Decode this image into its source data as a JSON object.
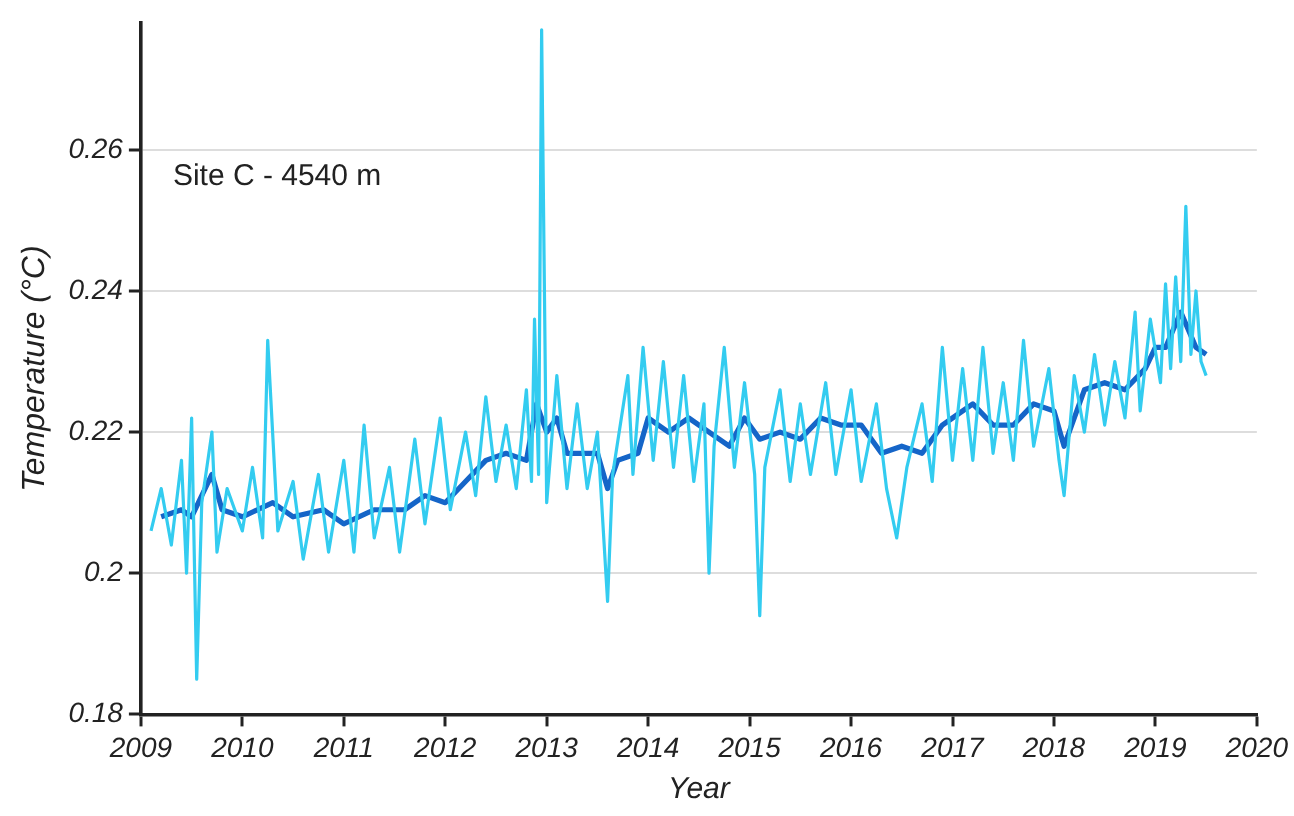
{
  "chart_data": {
    "type": "line",
    "xlabel": "Year",
    "ylabel": "Temperature (°C)",
    "annotations": [
      "Site C - 4540 m"
    ],
    "xlim": [
      2009,
      2020
    ],
    "xticks": [
      2009,
      2010,
      2011,
      2012,
      2013,
      2014,
      2015,
      2016,
      2017,
      2018,
      2019,
      2020
    ],
    "ylim": [
      0.18,
      0.278
    ],
    "yticks": [
      0.18,
      0.2,
      0.22,
      0.24,
      0.26
    ],
    "grid": "y",
    "marker": "none",
    "line_style": "solid",
    "series": [
      {
        "color": "#33ccf0",
        "x": [
          2009.1,
          2009.2,
          2009.3,
          2009.4,
          2009.45,
          2009.5,
          2009.55,
          2009.6,
          2009.7,
          2009.75,
          2009.85,
          2010.0,
          2010.1,
          2010.2,
          2010.25,
          2010.35,
          2010.5,
          2010.6,
          2010.75,
          2010.85,
          2011.0,
          2011.1,
          2011.2,
          2011.3,
          2011.45,
          2011.55,
          2011.7,
          2011.8,
          2011.95,
          2012.05,
          2012.2,
          2012.3,
          2012.4,
          2012.5,
          2012.6,
          2012.7,
          2012.8,
          2012.85,
          2012.88,
          2012.92,
          2012.95,
          2013.0,
          2013.1,
          2013.2,
          2013.3,
          2013.4,
          2013.5,
          2013.55,
          2013.6,
          2013.65,
          2013.8,
          2013.85,
          2013.95,
          2014.05,
          2014.15,
          2014.25,
          2014.35,
          2014.45,
          2014.55,
          2014.6,
          2014.65,
          2014.75,
          2014.85,
          2014.95,
          2015.05,
          2015.1,
          2015.15,
          2015.3,
          2015.4,
          2015.5,
          2015.6,
          2015.75,
          2015.85,
          2016.0,
          2016.1,
          2016.25,
          2016.35,
          2016.45,
          2016.55,
          2016.7,
          2016.8,
          2016.9,
          2017.0,
          2017.1,
          2017.2,
          2017.3,
          2017.4,
          2017.5,
          2017.6,
          2017.7,
          2017.8,
          2017.95,
          2018.05,
          2018.1,
          2018.2,
          2018.3,
          2018.4,
          2018.5,
          2018.6,
          2018.7,
          2018.8,
          2018.85,
          2018.95,
          2019.05,
          2019.1,
          2019.15,
          2019.2,
          2019.25,
          2019.3,
          2019.35,
          2019.4,
          2019.45,
          2019.5
        ],
        "values": [
          0.206,
          0.212,
          0.204,
          0.216,
          0.2,
          0.222,
          0.185,
          0.21,
          0.22,
          0.203,
          0.212,
          0.206,
          0.215,
          0.205,
          0.233,
          0.206,
          0.213,
          0.202,
          0.214,
          0.203,
          0.216,
          0.203,
          0.221,
          0.205,
          0.215,
          0.203,
          0.219,
          0.207,
          0.222,
          0.209,
          0.22,
          0.211,
          0.225,
          0.213,
          0.221,
          0.212,
          0.226,
          0.213,
          0.236,
          0.214,
          0.277,
          0.21,
          0.228,
          0.212,
          0.224,
          0.212,
          0.22,
          0.208,
          0.196,
          0.214,
          0.228,
          0.214,
          0.232,
          0.216,
          0.23,
          0.215,
          0.228,
          0.213,
          0.224,
          0.2,
          0.218,
          0.232,
          0.215,
          0.227,
          0.214,
          0.194,
          0.215,
          0.226,
          0.213,
          0.224,
          0.214,
          0.227,
          0.214,
          0.226,
          0.213,
          0.224,
          0.212,
          0.205,
          0.215,
          0.224,
          0.213,
          0.232,
          0.216,
          0.229,
          0.216,
          0.232,
          0.217,
          0.227,
          0.216,
          0.233,
          0.218,
          0.229,
          0.216,
          0.211,
          0.228,
          0.22,
          0.231,
          0.221,
          0.23,
          0.222,
          0.237,
          0.223,
          0.236,
          0.227,
          0.241,
          0.229,
          0.242,
          0.23,
          0.252,
          0.231,
          0.24,
          0.23,
          0.228
        ]
      },
      {
        "color": "#1565c8",
        "x": [
          2009.2,
          2009.4,
          2009.5,
          2009.7,
          2009.8,
          2010.0,
          2010.3,
          2010.5,
          2010.8,
          2011.0,
          2011.3,
          2011.6,
          2011.8,
          2012.0,
          2012.2,
          2012.4,
          2012.6,
          2012.8,
          2012.9,
          2013.0,
          2013.1,
          2013.2,
          2013.5,
          2013.6,
          2013.7,
          2013.9,
          2014.0,
          2014.2,
          2014.4,
          2014.6,
          2014.8,
          2014.95,
          2015.1,
          2015.3,
          2015.5,
          2015.7,
          2015.9,
          2016.1,
          2016.3,
          2016.5,
          2016.7,
          2016.9,
          2017.0,
          2017.2,
          2017.4,
          2017.6,
          2017.8,
          2018.0,
          2018.1,
          2018.3,
          2018.5,
          2018.7,
          2018.9,
          2019.0,
          2019.1,
          2019.25,
          2019.4,
          2019.5
        ],
        "values": [
          0.208,
          0.209,
          0.208,
          0.214,
          0.209,
          0.208,
          0.21,
          0.208,
          0.209,
          0.207,
          0.209,
          0.209,
          0.211,
          0.21,
          0.213,
          0.216,
          0.217,
          0.216,
          0.224,
          0.22,
          0.222,
          0.217,
          0.217,
          0.212,
          0.216,
          0.217,
          0.222,
          0.22,
          0.222,
          0.22,
          0.218,
          0.222,
          0.219,
          0.22,
          0.219,
          0.222,
          0.221,
          0.221,
          0.217,
          0.218,
          0.217,
          0.221,
          0.222,
          0.224,
          0.221,
          0.221,
          0.224,
          0.223,
          0.218,
          0.226,
          0.227,
          0.226,
          0.229,
          0.232,
          0.232,
          0.237,
          0.232,
          0.231
        ]
      }
    ]
  }
}
